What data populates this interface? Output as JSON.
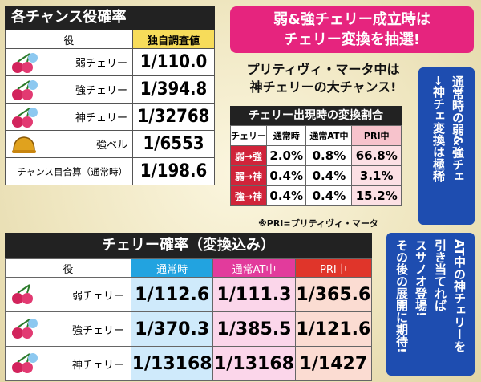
{
  "chance_table": {
    "title": "各チャンス役確率",
    "col_role": "役",
    "col_value": "独自調査値",
    "rows": [
      {
        "name": "弱チェリー",
        "value": "1/110.0",
        "icon": "cherry-icon"
      },
      {
        "name": "強チェリー",
        "value": "1/394.8",
        "icon": "cherry-icon"
      },
      {
        "name": "神チェリー",
        "value": "1/32768",
        "icon": "cherry-icon"
      },
      {
        "name": "強ベル",
        "value": "1/6553",
        "icon": "bell-icon"
      },
      {
        "name": "チャンス目合算（通常時）",
        "value": "1/198.6",
        "icon": ""
      }
    ]
  },
  "banner": {
    "line1": "弱&強チェリー成立時は",
    "line2": "チェリー変換を抽選!"
  },
  "pri_message": {
    "line1": "プリティヴィ・マータ中は",
    "line2": "神チェリーの大チャンス!"
  },
  "conversion_table": {
    "title": "チェリー出現時の変換割合",
    "headers": [
      "チェリー",
      "通常時",
      "通常AT中",
      "PRI中"
    ],
    "rows": [
      {
        "label": "弱→強",
        "values": [
          "2.0%",
          "0.8%",
          "66.8%"
        ]
      },
      {
        "label": "弱→神",
        "values": [
          "0.4%",
          "0.4%",
          "3.1%"
        ]
      },
      {
        "label": "強→神",
        "values": [
          "0.4%",
          "0.4%",
          "15.2%"
        ]
      }
    ]
  },
  "side_note": {
    "line1": "通常時の弱&強チェ",
    "line2": "→神チェ変換は極稀"
  },
  "footnote": "※PRI=プリティヴィ・マータ",
  "cherry_table": {
    "title": "チェリー確率（変換込み）",
    "headers": [
      "役",
      "通常時",
      "通常AT中",
      "PRI中"
    ],
    "rows": [
      {
        "name": "弱チェリー",
        "values": [
          "1/112.6",
          "1/111.3",
          "1/365.6"
        ]
      },
      {
        "name": "強チェリー",
        "values": [
          "1/370.3",
          "1/385.5",
          "1/121.6"
        ]
      },
      {
        "name": "神チェリー",
        "values": [
          "1/13168",
          "1/13168",
          "1/1427"
        ]
      }
    ]
  },
  "at_note": {
    "line1": "AT中の神チェリーを",
    "line2": "引き当てれば",
    "line3": "スサノオ登場!",
    "line4": "その後の展開に期待!"
  },
  "colors": {
    "banner_pink": "#e6247e",
    "note_blue": "#1e4db0",
    "normal_blue": "#22a3e0",
    "at_pink": "#e23b9c",
    "pri_red": "#e0352a"
  }
}
